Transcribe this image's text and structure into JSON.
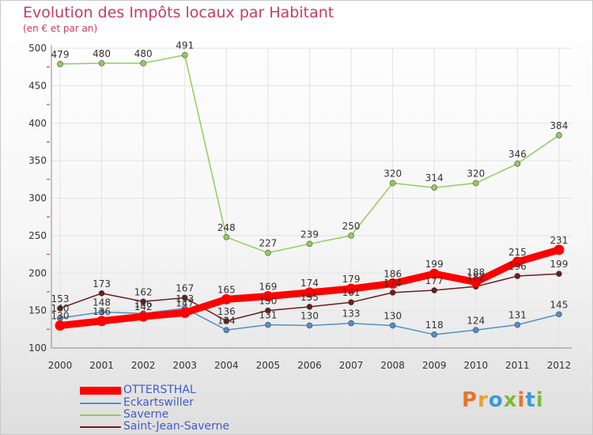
{
  "header": {
    "title": "Evolution des Impôts locaux par Habitant",
    "subtitle": "(en € et par an)"
  },
  "logo": {
    "text": "Proxiti",
    "colors": [
      "#e8742a",
      "#f0a030",
      "#3b9ad9",
      "#7dba3c",
      "#e8742a",
      "#3b9ad9",
      "#7dba3c"
    ]
  },
  "chart_data": {
    "type": "line",
    "x": [
      "2000",
      "2001",
      "2002",
      "2003",
      "2004",
      "2005",
      "2006",
      "2007",
      "2008",
      "2009",
      "2010",
      "2011",
      "2012"
    ],
    "ylim": [
      100,
      500
    ],
    "yticks": [
      100,
      150,
      200,
      250,
      300,
      350,
      400,
      450,
      500
    ],
    "grid": true,
    "legend_position": "bottom-left",
    "series": [
      {
        "name": "OTTERSTHAL",
        "color": "#ff0000",
        "values": [
          130,
          136,
          142,
          147,
          165,
          169,
          174,
          179,
          186,
          199,
          188,
          215,
          231
        ]
      },
      {
        "name": "Eckartswiller",
        "color": "#4f90c8",
        "values": [
          140,
          148,
          146,
          153,
          124,
          131,
          130,
          133,
          130,
          118,
          124,
          131,
          145
        ]
      },
      {
        "name": "Saverne",
        "color": "#8fcf5a",
        "values": [
          479,
          480,
          480,
          491,
          248,
          227,
          239,
          250,
          320,
          314,
          320,
          346,
          384
        ]
      },
      {
        "name": "Saint-Jean-Saverne",
        "color": "#6b1d1d",
        "values": [
          153,
          173,
          162,
          167,
          136,
          150,
          155,
          161,
          174,
          177,
          182,
          196,
          199
        ]
      }
    ]
  }
}
